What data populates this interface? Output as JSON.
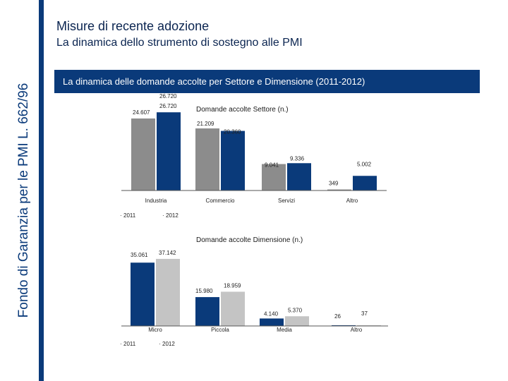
{
  "sidebar_text": "Fondo di Garanzia per le PMI L. 662/96",
  "header": {
    "title": "Misure di recente adozione",
    "subtitle": "La dinamica dello strumento di sostegno alle PMI"
  },
  "banner": "La dinamica delle domande accolte per Settore e Dimensione (2011-2012)",
  "colors": {
    "navy": "#0a3a7a",
    "gray": "#8c8c8c",
    "lightgray": "#c4c4c4"
  },
  "chart_data": [
    {
      "type": "bar",
      "title": "Domande accolte Settore (n.)",
      "categories": [
        "Industria",
        "Commercio",
        "Servizi",
        "Altro"
      ],
      "series": [
        {
          "name": "2011",
          "values": [
            24607,
            21209,
            9041,
            349
          ],
          "labels": [
            "24.607",
            "21.209",
            "9.041",
            "349"
          ]
        },
        {
          "name": "2012",
          "values": [
            26720,
            20360,
            9336,
            5002
          ],
          "labels": [
            "26.720",
            "20.360",
            "9.336",
            "5.002"
          ]
        }
      ],
      "extra_label": "26.720",
      "legend": [
        "2011",
        "2012"
      ],
      "ylim": [
        0,
        27000
      ]
    },
    {
      "type": "bar",
      "title": "Domande accolte Dimensione (n.)",
      "categories": [
        "Micro",
        "Piccola",
        "Media",
        "Altro"
      ],
      "series": [
        {
          "name": "2011",
          "values": [
            35061,
            15980,
            4140,
            26
          ],
          "labels": [
            "35.061",
            "15.980",
            "4.140",
            "26"
          ]
        },
        {
          "name": "2012",
          "values": [
            37142,
            18959,
            5370,
            37
          ],
          "labels": [
            "37.142",
            "18.959",
            "5.370",
            "37"
          ]
        }
      ],
      "legend": [
        "2011",
        "2012"
      ],
      "ylim": [
        0,
        37500
      ]
    }
  ]
}
